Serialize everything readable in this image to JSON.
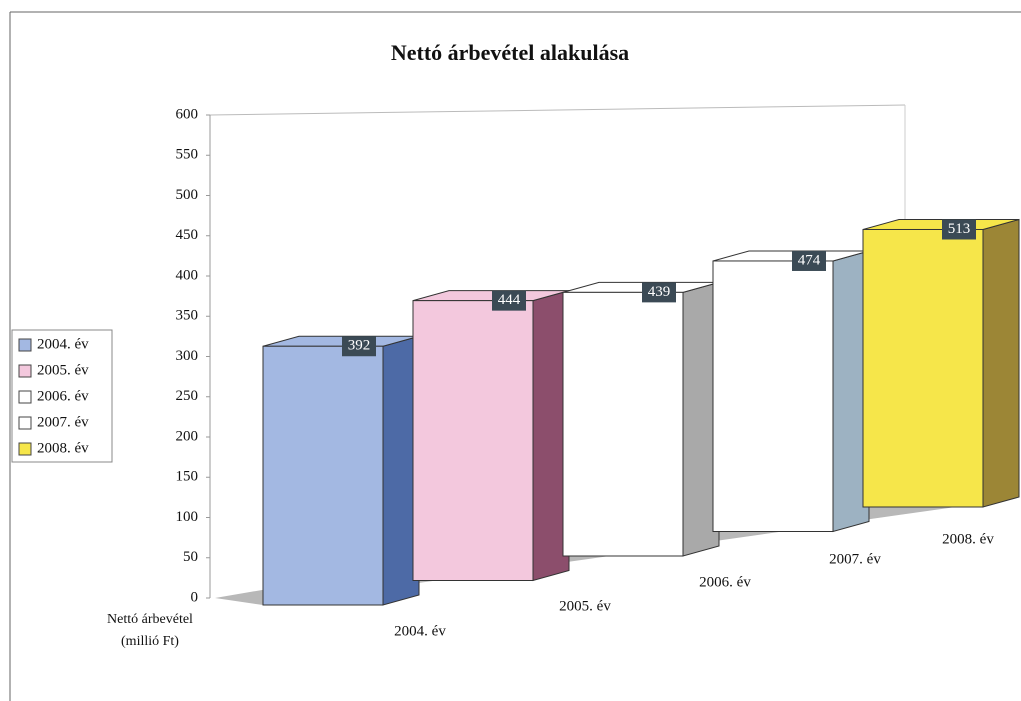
{
  "chart_data": {
    "type": "bar3d",
    "title": "Nettó árbevétel alakulása",
    "ylabel": [
      "Nettó árbevétel",
      "(millió Ft)"
    ],
    "categories": [
      "2004. év",
      "2005. év",
      "2006. év",
      "2007. év",
      "2008. év"
    ],
    "values": [
      392,
      444,
      439,
      474,
      513
    ],
    "colors": [
      "#a3b8e2",
      "#f3c8dd",
      "#ffffff",
      "#ffffff",
      "#f6e64a"
    ],
    "side_colors": [
      "#4d6aa6",
      "#8c4e6c",
      "#a9a9a9",
      "#9db2c2",
      "#9c8636"
    ],
    "ylim": [
      0,
      600
    ],
    "yticks": [
      0,
      50,
      100,
      150,
      200,
      250,
      300,
      350,
      400,
      450,
      500,
      550,
      600
    ],
    "legend": "left"
  }
}
